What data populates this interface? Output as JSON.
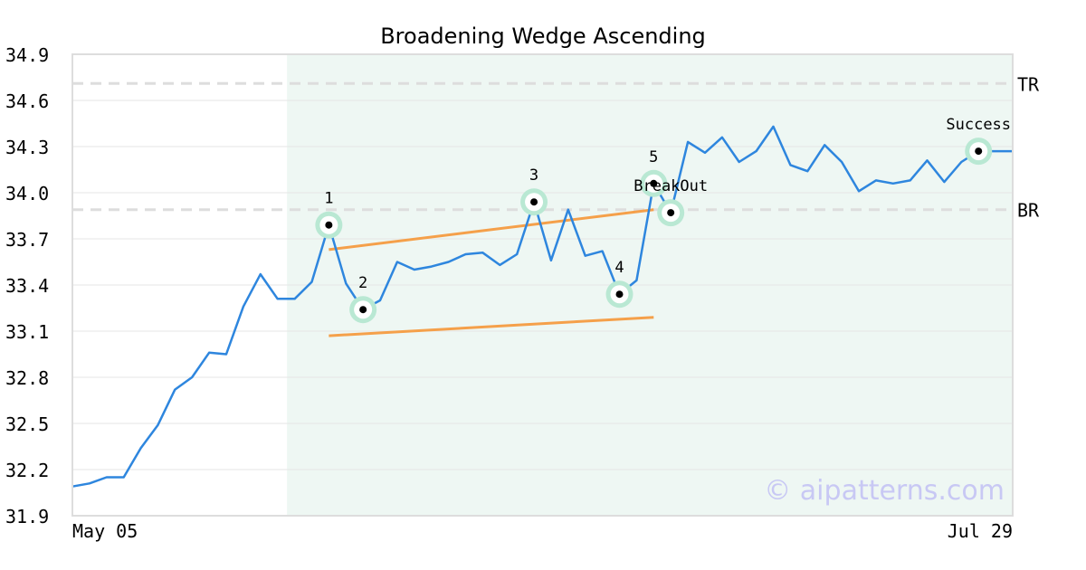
{
  "chart_data": {
    "type": "line",
    "title": "Broadening Wedge Ascending",
    "watermark": "© aipatterns.com",
    "ylim": [
      31.9,
      34.9
    ],
    "yticks": [
      "31.9",
      "32.2",
      "32.5",
      "32.8",
      "33.1",
      "33.4",
      "33.7",
      "34.0",
      "34.3",
      "34.6",
      "34.9"
    ],
    "x_start_label": "May 05",
    "x_end_label": "Jul 29",
    "grid": true,
    "series": [
      {
        "color": "#2e86de",
        "values": [
          32.09,
          32.11,
          32.15,
          32.15,
          32.34,
          32.49,
          32.72,
          32.8,
          32.96,
          32.95,
          33.26,
          33.47,
          33.31,
          33.31,
          33.42,
          33.79,
          33.41,
          33.24,
          33.3,
          33.55,
          33.5,
          33.52,
          33.55,
          33.6,
          33.61,
          33.53,
          33.6,
          33.94,
          33.56,
          33.89,
          33.59,
          33.62,
          33.34,
          33.43,
          34.06,
          33.87,
          34.33,
          34.26,
          34.36,
          34.2,
          34.27,
          34.43,
          34.18,
          34.14,
          34.31,
          34.2,
          34.01,
          34.08,
          34.06,
          34.08,
          34.21,
          34.07,
          34.2,
          34.27,
          34.27,
          34.27
        ]
      }
    ],
    "highlight_region": {
      "start_index": 13,
      "end_index": 55,
      "color": "#eef7f3"
    },
    "reference_lines": [
      {
        "label": "TR",
        "value": 34.71,
        "color": "#dddddd"
      },
      {
        "label": "BR",
        "value": 33.89,
        "color": "#dddddd"
      }
    ],
    "trend_lines": [
      {
        "color": "#f5a04a",
        "from": {
          "index": 15,
          "value": 33.63
        },
        "to": {
          "index": 34,
          "value": 33.89
        }
      },
      {
        "color": "#f5a04a",
        "from": {
          "index": 15,
          "value": 33.07
        },
        "to": {
          "index": 34,
          "value": 33.19
        }
      }
    ],
    "points": [
      {
        "label": "1",
        "index": 15,
        "value": 33.79,
        "label_pos": "above"
      },
      {
        "label": "2",
        "index": 17,
        "value": 33.24,
        "label_pos": "above"
      },
      {
        "label": "3",
        "index": 27,
        "value": 33.94,
        "label_pos": "above"
      },
      {
        "label": "4",
        "index": 32,
        "value": 33.34,
        "label_pos": "above"
      },
      {
        "label": "5",
        "index": 34,
        "value": 34.06,
        "label_pos": "above"
      },
      {
        "label": "BreakOut",
        "index": 35,
        "value": 33.87,
        "label_pos": "above"
      },
      {
        "label": "Success",
        "index": 53,
        "value": 34.27,
        "label_pos": "above"
      }
    ],
    "marker_halo_color": "#b9e8d3"
  }
}
